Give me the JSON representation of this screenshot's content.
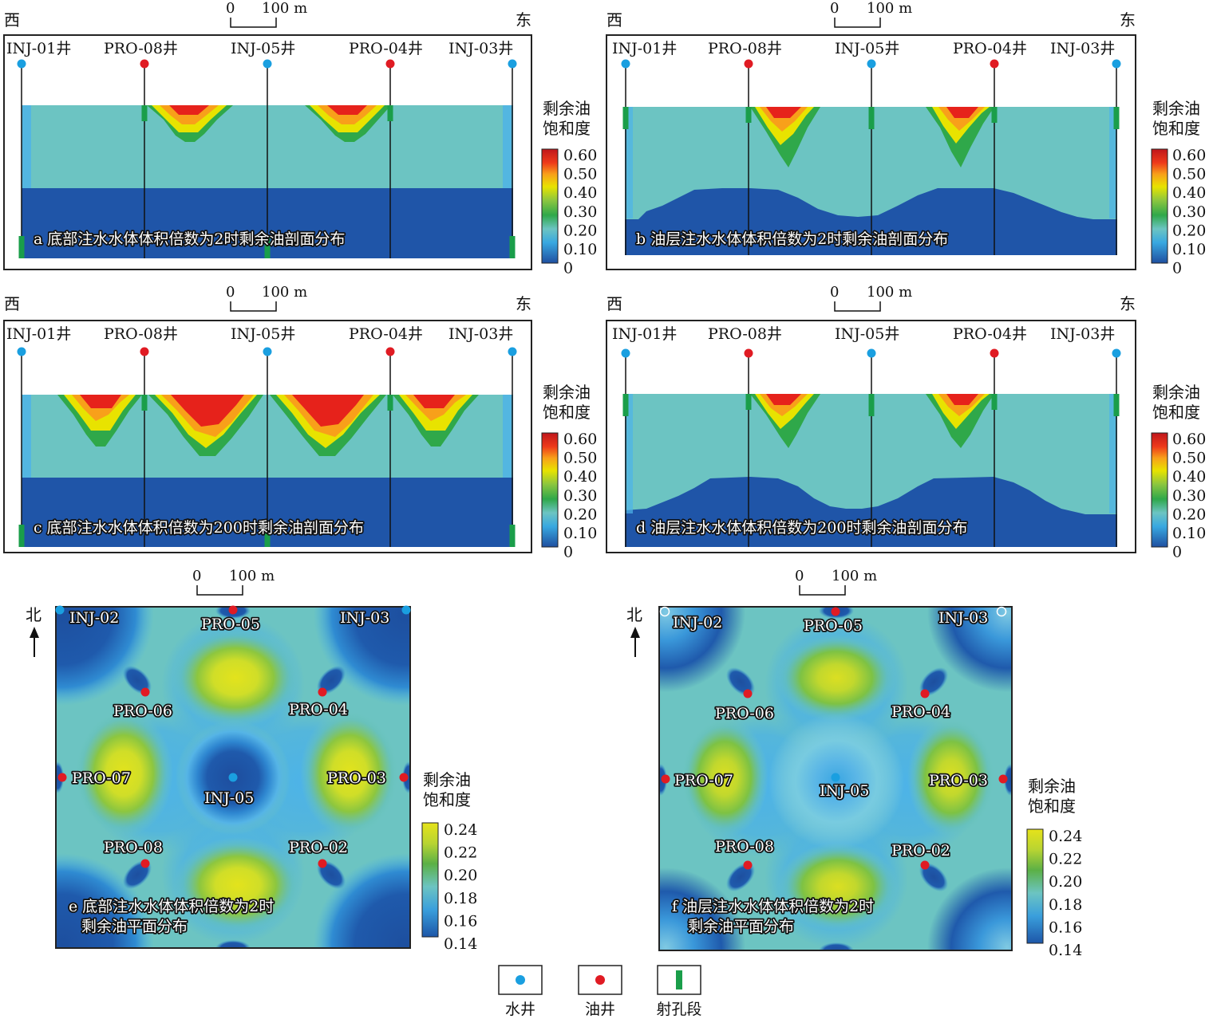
{
  "direction": {
    "west": "西",
    "east": "东",
    "north": "北",
    "arrow": "↑"
  },
  "scale": {
    "zero": "0",
    "label": "100 m"
  },
  "colors": {
    "deep_blue": "#1f55a8",
    "teal": "#6cc4c2",
    "light_blue": "#48b6e8",
    "yellow": "#f0ef00",
    "orange": "#f7a11a",
    "red": "#e6221b",
    "water_well": "#1a9fe0",
    "oil_well": "#e01b23",
    "perforation": "#1a9e4a"
  },
  "profile_wells": [
    "INJ-01井",
    "PRO-08井",
    "INJ-05井",
    "PRO-04井",
    "INJ-03井"
  ],
  "profile_legend": {
    "title_line1": "剩余油",
    "title_line2": "饱和度",
    "ticks": [
      "0.60",
      "0.50",
      "0.40",
      "0.30",
      "0.20",
      "0.10",
      "0"
    ]
  },
  "plan_legend": {
    "title_line1": "剩余油",
    "title_line2": "饱和度",
    "ticks": [
      "0.24",
      "0.22",
      "0.20",
      "0.18",
      "0.16",
      "0.14"
    ]
  },
  "plan_wells": {
    "INJ-02": "INJ-02",
    "INJ-03": "INJ-03",
    "INJ-05": "INJ-05",
    "PRO-02": "PRO-02",
    "PRO-03": "PRO-03",
    "PRO-04": "PRO-04",
    "PRO-05": "PRO-05",
    "PRO-06": "PRO-06",
    "PRO-07": "PRO-07",
    "PRO-08": "PRO-08"
  },
  "panels": {
    "a": {
      "caption": "a 底部注水水体体积倍数为2时剩余油剖面分布"
    },
    "b": {
      "caption": "b 油层注水水体体积倍数为2时剩余油剖面分布"
    },
    "c": {
      "caption": "c 底部注水水体体积倍数为200时剩余油剖面分布"
    },
    "d": {
      "caption": "d 油层注水水体体积倍数为200时剩余油剖面分布"
    },
    "e": {
      "caption_line1": "e 底部注水水体体积倍数为2时",
      "caption_line2": "剩余油平面分布"
    },
    "f": {
      "caption_line1": "f  油层注水水体体积倍数为2时",
      "caption_line2": "剩余油平面分布"
    }
  },
  "legend": {
    "water_well": "水井",
    "oil_well": "油井",
    "perforation": "射孔段"
  }
}
